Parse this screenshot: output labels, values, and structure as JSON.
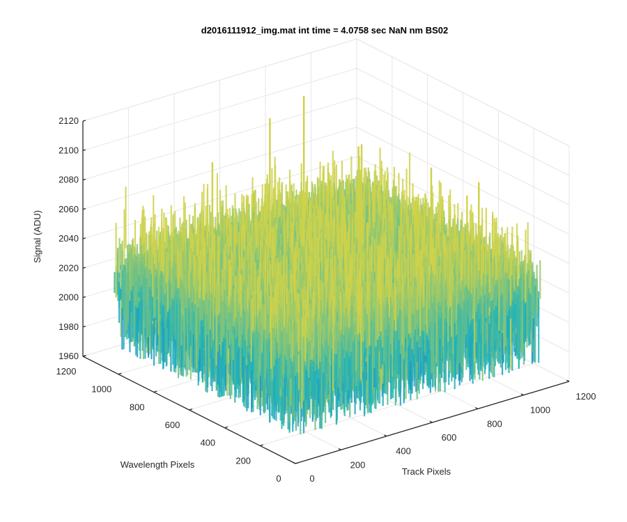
{
  "chart_data": {
    "type": "surface",
    "title": "d2016111912_img.mat int time = 4.0758 sec  NaN nm BS02",
    "xlabel": "Track Pixels",
    "ylabel": "Wavelength Pixels",
    "zlabel": "Signal (ADU)",
    "xlim": [
      0,
      1200
    ],
    "ylim": [
      0,
      1200
    ],
    "zlim": [
      1960,
      2120
    ],
    "xticks": [
      "0",
      "200",
      "400",
      "600",
      "800",
      "1000",
      "1200"
    ],
    "yticks": [
      "0",
      "200",
      "400",
      "600",
      "800",
      "1000",
      "1200"
    ],
    "zticks": [
      "1960",
      "1980",
      "2000",
      "2020",
      "2040",
      "2060",
      "2080",
      "2100",
      "2120"
    ],
    "grid": true,
    "view": "3d",
    "colormap": "parula",
    "surface": {
      "x_extent": [
        0,
        1080
      ],
      "y_extent": [
        0,
        1030
      ],
      "baseline": 2022,
      "noise_std": 9,
      "typical_range": [
        1985,
        2060
      ],
      "spikes": [
        {
          "x": 720,
          "y": 880,
          "z": 2123
        },
        {
          "x": 610,
          "y": 930,
          "z": 2110
        },
        {
          "x": 820,
          "y": 700,
          "z": 2095
        },
        {
          "x": 960,
          "y": 470,
          "z": 2088
        },
        {
          "x": 1060,
          "y": 330,
          "z": 2082
        },
        {
          "x": 420,
          "y": 1010,
          "z": 2084
        },
        {
          "x": 880,
          "y": 760,
          "z": 2090
        }
      ]
    },
    "colors": {
      "low": "#1f73d9",
      "mid": "#1fb2b9",
      "high": "#cfd24a",
      "axis": "#262626",
      "grid": "#e6e6e6"
    }
  }
}
